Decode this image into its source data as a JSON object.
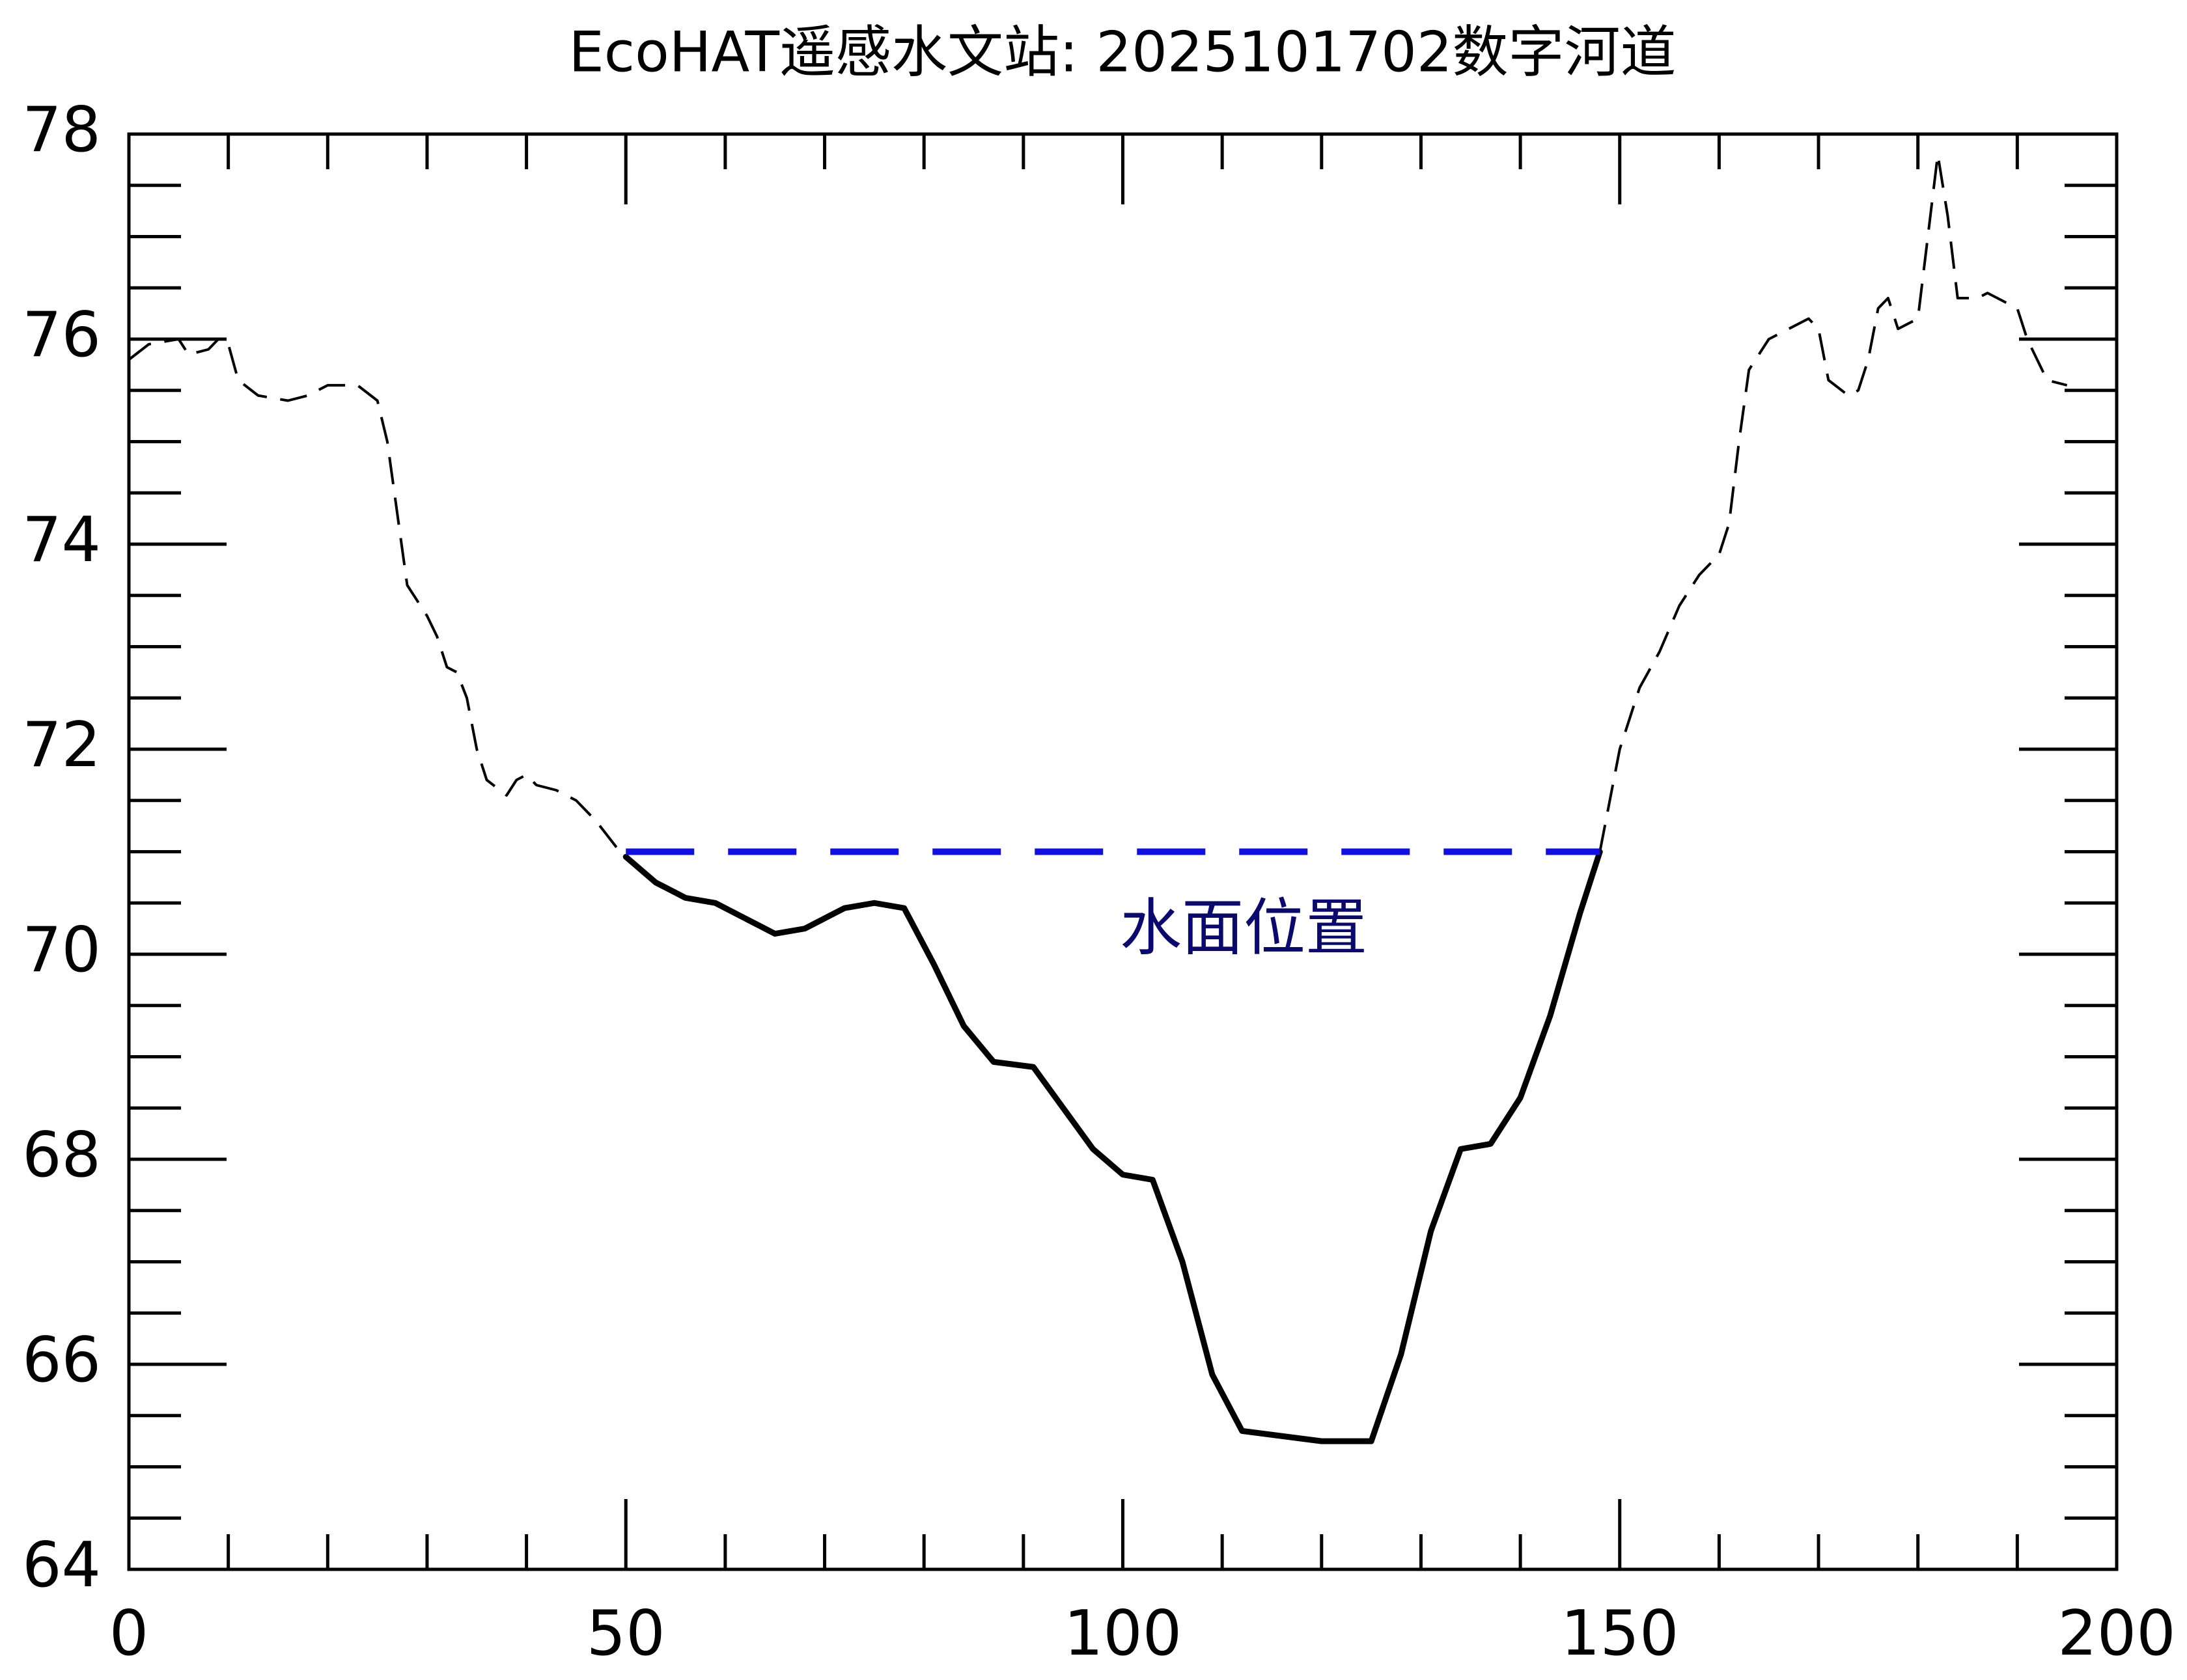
{
  "chart_data": {
    "type": "line",
    "title": "EcoHAT遥感水文站: 2025101702数字河道",
    "annotation": "水面位置",
    "xlim": [
      0,
      200
    ],
    "xticks": [
      0,
      50,
      100,
      150,
      200
    ],
    "ylim": [
      64,
      78
    ],
    "yticks": [
      64,
      66,
      68,
      70,
      72,
      74,
      76,
      78
    ],
    "minor_divisions": {
      "x": 5,
      "y": 4
    },
    "series": [
      {
        "color": "#000000",
        "dashed": true,
        "width": 4,
        "x": [
          0,
          2,
          5,
          6,
          8,
          9,
          10,
          11,
          13,
          16,
          18,
          20,
          23,
          25,
          26,
          27,
          28,
          30,
          31,
          32,
          33,
          34,
          35,
          36,
          38,
          39,
          40,
          41,
          43,
          45,
          47,
          49,
          50
        ],
        "values": [
          75.8,
          75.95,
          76.0,
          75.85,
          75.9,
          76.0,
          75.95,
          75.6,
          75.45,
          75.4,
          75.45,
          75.55,
          75.55,
          75.4,
          75.0,
          74.3,
          73.6,
          73.3,
          73.1,
          72.8,
          72.75,
          72.5,
          72.0,
          71.7,
          71.55,
          71.7,
          71.75,
          71.65,
          71.6,
          71.5,
          71.3,
          71.05,
          70.95
        ]
      },
      {
        "color": "#000000",
        "dashed": false,
        "width": 9,
        "x": [
          50,
          53,
          56,
          59,
          62,
          65,
          68,
          72,
          75,
          78,
          81,
          84,
          87,
          91,
          94,
          97,
          100,
          103,
          106,
          109,
          112,
          116,
          120,
          125,
          128,
          131,
          134,
          137,
          140,
          143,
          146,
          148
        ],
        "values": [
          70.95,
          70.7,
          70.55,
          70.5,
          70.35,
          70.2,
          70.25,
          70.45,
          70.5,
          70.45,
          69.9,
          69.3,
          68.95,
          68.9,
          68.5,
          68.1,
          67.85,
          67.8,
          67.0,
          65.9,
          65.35,
          65.3,
          65.25,
          65.25,
          66.1,
          67.3,
          68.1,
          68.15,
          68.6,
          69.4,
          70.4,
          71.0
        ]
      },
      {
        "color": "#000000",
        "dashed": true,
        "width": 4,
        "x": [
          148,
          150,
          152,
          154,
          156,
          158,
          160,
          161,
          162,
          163,
          165,
          167,
          169,
          170,
          171,
          173,
          174,
          175,
          176,
          177,
          178,
          180,
          181,
          182,
          183,
          184,
          186,
          187,
          189,
          190,
          191,
          193,
          195
        ],
        "values": [
          71.0,
          72.0,
          72.6,
          72.95,
          73.4,
          73.7,
          73.9,
          74.2,
          75.0,
          75.7,
          76.0,
          76.1,
          76.2,
          76.1,
          75.6,
          75.45,
          75.5,
          75.8,
          76.3,
          76.4,
          76.1,
          76.2,
          77.0,
          77.8,
          77.2,
          76.4,
          76.4,
          76.45,
          76.35,
          76.3,
          76.0,
          75.6,
          75.55
        ]
      },
      {
        "color": "#1010e0",
        "dashed": true,
        "width": 10,
        "x": [
          50,
          148
        ],
        "values": [
          71,
          71
        ]
      }
    ]
  }
}
